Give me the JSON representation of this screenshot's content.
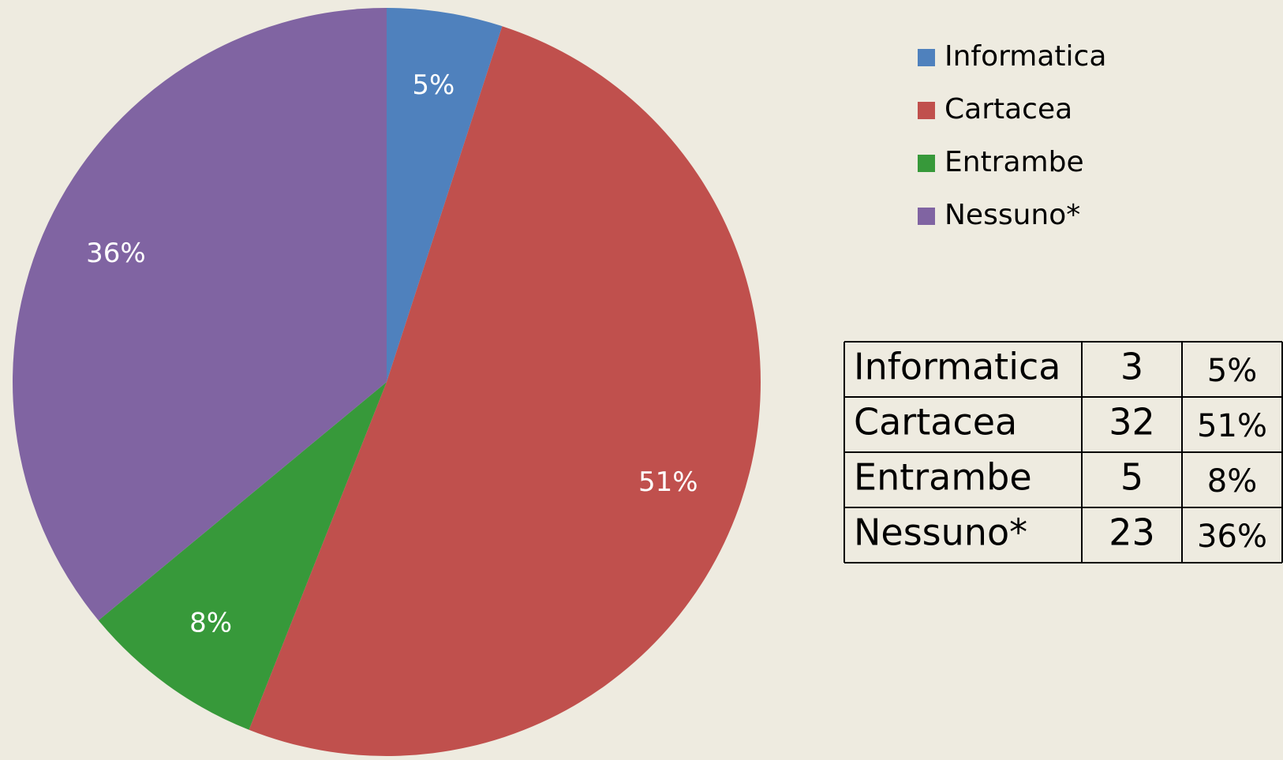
{
  "chart_data": {
    "type": "pie",
    "categories": [
      "Informatica",
      "Cartacea",
      "Entrambe",
      "Nessuno*"
    ],
    "values": [
      5,
      51,
      8,
      36
    ],
    "value_labels": [
      "5%",
      "51%",
      "8%",
      "36%"
    ],
    "colors": [
      "#4f81bd",
      "#c0504d",
      "#37993a",
      "#8064a2"
    ],
    "legend": "top-right"
  },
  "table": {
    "rows": [
      [
        "Informatica",
        3,
        "5%"
      ],
      [
        "Cartacea",
        32,
        "51%"
      ],
      [
        "Entrambe",
        5,
        "8%"
      ],
      [
        "Nessuno*",
        23,
        "36%"
      ]
    ]
  }
}
